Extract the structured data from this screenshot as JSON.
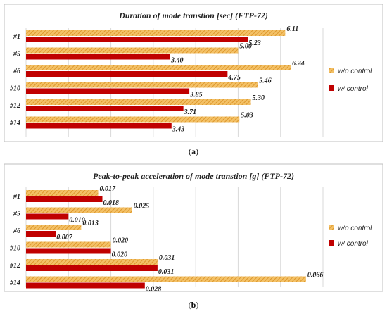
{
  "colors": {
    "wo": "#f3c167",
    "wo_stripe": "#d98e1e",
    "w": "#c00000",
    "grid": "#d9d9d9",
    "border": "#bfbfbf"
  },
  "chart_data": [
    {
      "type": "bar",
      "orientation": "horizontal",
      "title": "Duration of mode transtion [sec] (FTP-72)",
      "caption_letter": "a",
      "categories": [
        "#1",
        "#5",
        "#6",
        "#10",
        "#12",
        "#14"
      ],
      "series": [
        {
          "name": "w/o control",
          "values": [
            6.11,
            5.0,
            6.24,
            5.46,
            5.3,
            5.03
          ],
          "labels": [
            "6.11",
            "5.00",
            "6.24",
            "5.46",
            "5.30",
            "5.03"
          ]
        },
        {
          "name": "w/ control",
          "values": [
            5.23,
            3.4,
            4.75,
            3.85,
            3.71,
            3.43
          ],
          "labels": [
            "5.23",
            "3.40",
            "4.75",
            "3.85",
            "3.71",
            "3.43"
          ]
        }
      ],
      "xlim": [
        0,
        7
      ],
      "grid_step": 1,
      "grid": true,
      "legend_position": "right"
    },
    {
      "type": "bar",
      "orientation": "horizontal",
      "title": "Peak-to-peak acceleration of mode transtion [g] (FTP-72)",
      "caption_letter": "b",
      "categories": [
        "#1",
        "#5",
        "#6",
        "#10",
        "#12",
        "#14"
      ],
      "series": [
        {
          "name": "w/o control",
          "values": [
            0.017,
            0.025,
            0.013,
            0.02,
            0.031,
            0.066
          ],
          "labels": [
            "0.017",
            "0.025",
            "0.013",
            "0.020",
            "0.031",
            "0.066"
          ]
        },
        {
          "name": "w/ control",
          "values": [
            0.018,
            0.01,
            0.007,
            0.02,
            0.031,
            0.028
          ],
          "labels": [
            "0.018",
            "0.010",
            "0.007",
            "0.020",
            "0.031",
            "0.028"
          ]
        }
      ],
      "xlim": [
        0,
        0.07
      ],
      "grid_step": 0.01,
      "grid": true,
      "legend_position": "right"
    }
  ]
}
